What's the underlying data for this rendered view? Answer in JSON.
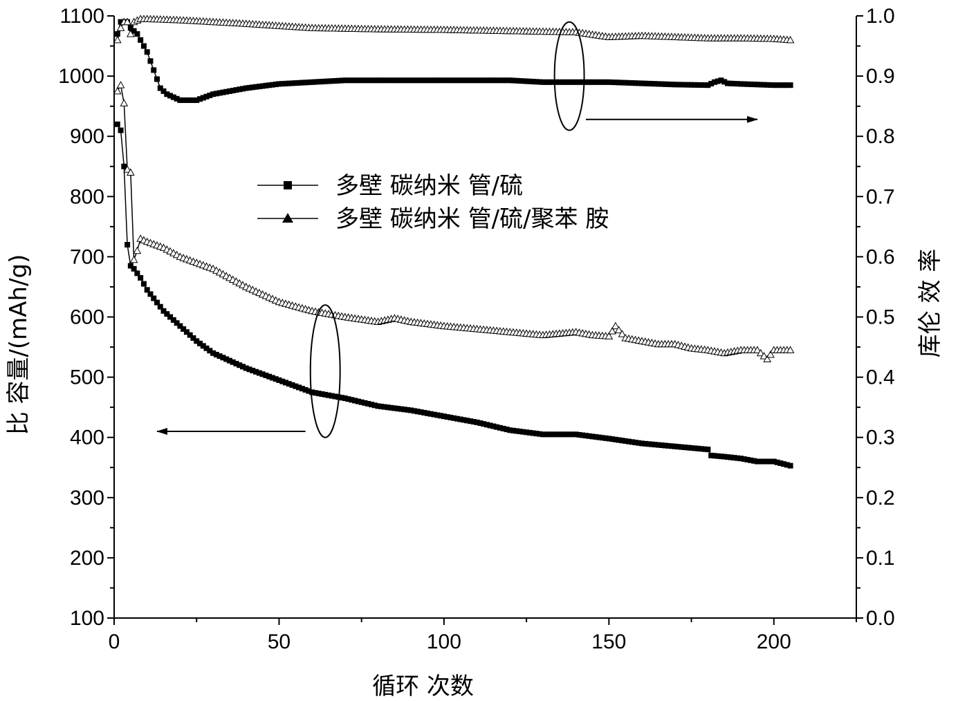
{
  "chart_data": {
    "type": "line",
    "xlabel": "循环 次数",
    "ylabel_left": "比 容量/(mAh/g)",
    "ylabel_right": "库伦 效 率",
    "xlim": [
      0,
      225
    ],
    "ylim_left": [
      100,
      1100
    ],
    "ylim_right": [
      0.0,
      1.0
    ],
    "x_ticks": [
      0,
      50,
      100,
      150,
      200
    ],
    "y_left_ticks": [
      100,
      200,
      300,
      400,
      500,
      600,
      700,
      800,
      900,
      1000,
      1100
    ],
    "y_right_ticks": [
      0.0,
      0.1,
      0.2,
      0.3,
      0.4,
      0.5,
      0.6,
      0.7,
      0.8,
      0.9,
      1.0
    ],
    "grid": false,
    "legend_position": "center",
    "series": [
      {
        "name": "多壁 碳纳米 管/硫",
        "marker": "square",
        "axis": "left",
        "metric": "capacity",
        "x": [
          1,
          2,
          3,
          4,
          5,
          6,
          8,
          10,
          15,
          20,
          25,
          30,
          40,
          50,
          60,
          70,
          80,
          90,
          100,
          110,
          120,
          130,
          140,
          150,
          160,
          170,
          180,
          181,
          185,
          190,
          195,
          200,
          205
        ],
        "y": [
          920,
          910,
          850,
          720,
          685,
          680,
          665,
          645,
          610,
          585,
          560,
          540,
          515,
          495,
          475,
          465,
          452,
          445,
          435,
          425,
          412,
          405,
          405,
          398,
          390,
          385,
          380,
          370,
          368,
          365,
          360,
          360,
          353
        ]
      },
      {
        "name": "多壁 碳纳米 管/硫/聚苯 胺",
        "marker": "triangle",
        "axis": "left",
        "metric": "capacity",
        "x": [
          1,
          2,
          3,
          4,
          5,
          6,
          7,
          8,
          10,
          15,
          20,
          30,
          40,
          50,
          60,
          70,
          80,
          85,
          90,
          100,
          110,
          120,
          130,
          140,
          145,
          150,
          152,
          155,
          160,
          165,
          170,
          175,
          180,
          185,
          190,
          195,
          198,
          200,
          205
        ],
        "y": [
          975,
          985,
          955,
          845,
          840,
          695,
          710,
          730,
          725,
          715,
          700,
          680,
          650,
          625,
          610,
          600,
          592,
          598,
          592,
          585,
          580,
          575,
          570,
          575,
          570,
          568,
          585,
          565,
          560,
          555,
          555,
          548,
          545,
          540,
          545,
          545,
          530,
          545,
          545
        ]
      },
      {
        "name": "多壁 碳纳米 管/硫",
        "marker": "square",
        "axis": "right",
        "metric": "coulombic efficiency",
        "x": [
          1,
          2,
          3,
          4,
          5,
          6,
          7,
          8,
          10,
          12,
          14,
          16,
          20,
          25,
          30,
          40,
          50,
          60,
          70,
          80,
          90,
          100,
          110,
          120,
          130,
          140,
          150,
          160,
          170,
          180,
          182,
          184,
          186,
          190,
          200,
          205
        ],
        "y": [
          0.97,
          0.99,
          0.99,
          0.99,
          0.98,
          0.975,
          0.97,
          0.96,
          0.94,
          0.91,
          0.88,
          0.87,
          0.86,
          0.86,
          0.87,
          0.88,
          0.887,
          0.89,
          0.893,
          0.893,
          0.893,
          0.893,
          0.893,
          0.893,
          0.89,
          0.89,
          0.89,
          0.888,
          0.886,
          0.885,
          0.89,
          0.893,
          0.888,
          0.887,
          0.885,
          0.885
        ]
      },
      {
        "name": "多壁 碳纳米 管/硫/聚苯 胺",
        "marker": "triangle",
        "axis": "right",
        "metric": "coulombic efficiency",
        "x": [
          1,
          2,
          3,
          4,
          5,
          6,
          8,
          10,
          20,
          40,
          60,
          80,
          100,
          120,
          140,
          150,
          160,
          170,
          180,
          190,
          200,
          205
        ],
        "y": [
          0.96,
          0.98,
          0.99,
          0.99,
          0.97,
          0.99,
          0.995,
          0.995,
          0.993,
          0.987,
          0.98,
          0.978,
          0.977,
          0.975,
          0.973,
          0.965,
          0.967,
          0.965,
          0.963,
          0.963,
          0.962,
          0.96
        ]
      }
    ],
    "annotations": [
      {
        "type": "ellipse",
        "target": "capacity curves",
        "cx": 64,
        "cy": 510,
        "rx": 4.5,
        "ry_units": 110,
        "axis": "left"
      },
      {
        "type": "arrow",
        "direction": "left",
        "from_x": 58,
        "to_x": 13,
        "y": 410,
        "axis": "left"
      },
      {
        "type": "ellipse",
        "target": "efficiency curves",
        "cx": 138,
        "cy": 0.9,
        "rx": 4.5,
        "ry_units": 0.09,
        "axis": "right"
      },
      {
        "type": "arrow",
        "direction": "right",
        "from_x": 143,
        "to_x": 195,
        "y": 0.828,
        "axis": "right"
      }
    ]
  }
}
